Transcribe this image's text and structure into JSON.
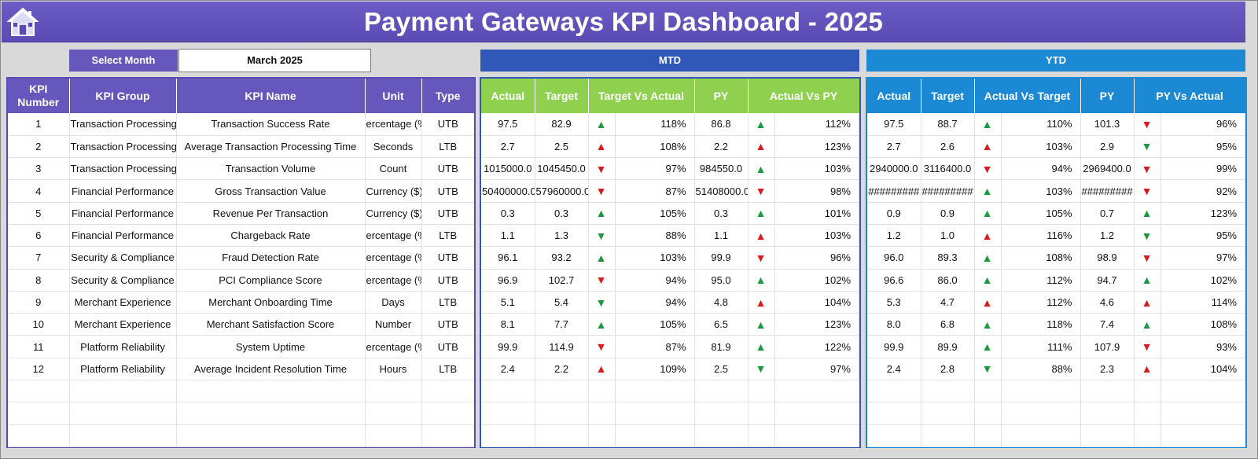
{
  "title": "Payment Gateways KPI Dashboard - 2025",
  "selector": {
    "label": "Select Month",
    "value": "March 2025"
  },
  "sections": {
    "mtd": "MTD",
    "ytd": "YTD"
  },
  "left_headers": [
    "KPI Number",
    "KPI Group",
    "KPI Name",
    "Unit",
    "Type"
  ],
  "mtd_headers": [
    "Actual",
    "Target",
    "Target Vs Actual",
    "PY",
    "Actual Vs PY"
  ],
  "ytd_headers": [
    "Actual",
    "Target",
    "Actual Vs Target",
    "PY",
    "PY Vs Actual"
  ],
  "colors": {
    "banner": "#5a4bb3",
    "mtd": "#2f58b8",
    "ytd": "#1b89d3",
    "mtd_header": "#8fd14f",
    "up": "#1a9a3a",
    "down": "#d81a1a"
  },
  "rows": [
    {
      "num": "1",
      "group": "Transaction Processing",
      "name": "Transaction Success Rate",
      "unit": "ercentage (%",
      "type": "UTB",
      "mtd": {
        "actual": "97.5",
        "target": "82.9",
        "tva_dir": "up",
        "tva": "118%",
        "py": "86.8",
        "avp_dir": "up",
        "avp": "112%"
      },
      "ytd": {
        "actual": "97.5",
        "target": "88.7",
        "avt_dir": "up",
        "avt": "110%",
        "py": "101.3",
        "pva_dir": "down",
        "pva": "96%"
      }
    },
    {
      "num": "2",
      "group": "Transaction Processing",
      "name": "Average Transaction Processing Time",
      "unit": "Seconds",
      "type": "LTB",
      "mtd": {
        "actual": "2.7",
        "target": "2.5",
        "tva_dir": "up-red",
        "tva": "108%",
        "py": "2.2",
        "avp_dir": "up-red",
        "avp": "123%"
      },
      "ytd": {
        "actual": "2.7",
        "target": "2.6",
        "avt_dir": "up-red",
        "avt": "103%",
        "py": "2.9",
        "pva_dir": "down-green",
        "pva": "95%"
      }
    },
    {
      "num": "3",
      "group": "Transaction Processing",
      "name": "Transaction Volume",
      "unit": "Count",
      "type": "UTB",
      "mtd": {
        "actual": "1015000.0",
        "target": "1045450.0",
        "tva_dir": "down",
        "tva": "97%",
        "py": "984550.0",
        "avp_dir": "up",
        "avp": "103%"
      },
      "ytd": {
        "actual": "2940000.0",
        "target": "3116400.0",
        "avt_dir": "down",
        "avt": "94%",
        "py": "2969400.0",
        "pva_dir": "down",
        "pva": "99%"
      }
    },
    {
      "num": "4",
      "group": "Financial Performance",
      "name": "Gross Transaction Value",
      "unit": "Currency ($)",
      "type": "UTB",
      "mtd": {
        "actual": "50400000.0",
        "target": "57960000.0",
        "tva_dir": "down",
        "tva": "87%",
        "py": "51408000.0",
        "avp_dir": "down",
        "avp": "98%"
      },
      "ytd": {
        "actual": "#########",
        "target": "#########",
        "avt_dir": "up",
        "avt": "103%",
        "py": "#########",
        "pva_dir": "down",
        "pva": "92%"
      }
    },
    {
      "num": "5",
      "group": "Financial Performance",
      "name": "Revenue Per Transaction",
      "unit": "Currency ($)",
      "type": "UTB",
      "mtd": {
        "actual": "0.3",
        "target": "0.3",
        "tva_dir": "up",
        "tva": "105%",
        "py": "0.3",
        "avp_dir": "up",
        "avp": "101%"
      },
      "ytd": {
        "actual": "0.9",
        "target": "0.9",
        "avt_dir": "up",
        "avt": "105%",
        "py": "0.7",
        "pva_dir": "up",
        "pva": "123%"
      }
    },
    {
      "num": "6",
      "group": "Financial Performance",
      "name": "Chargeback Rate",
      "unit": "ercentage (%",
      "type": "LTB",
      "mtd": {
        "actual": "1.1",
        "target": "1.3",
        "tva_dir": "down-green",
        "tva": "88%",
        "py": "1.1",
        "avp_dir": "up-red",
        "avp": "103%"
      },
      "ytd": {
        "actual": "1.2",
        "target": "1.0",
        "avt_dir": "up-red",
        "avt": "116%",
        "py": "1.2",
        "pva_dir": "down-green",
        "pva": "95%"
      }
    },
    {
      "num": "7",
      "group": "Security & Compliance",
      "name": "Fraud Detection Rate",
      "unit": "ercentage (%",
      "type": "UTB",
      "mtd": {
        "actual": "96.1",
        "target": "93.2",
        "tva_dir": "up",
        "tva": "103%",
        "py": "99.9",
        "avp_dir": "down",
        "avp": "96%"
      },
      "ytd": {
        "actual": "96.0",
        "target": "89.3",
        "avt_dir": "up",
        "avt": "108%",
        "py": "98.9",
        "pva_dir": "down",
        "pva": "97%"
      }
    },
    {
      "num": "8",
      "group": "Security & Compliance",
      "name": "PCI Compliance Score",
      "unit": "ercentage (%",
      "type": "UTB",
      "mtd": {
        "actual": "96.9",
        "target": "102.7",
        "tva_dir": "down",
        "tva": "94%",
        "py": "95.0",
        "avp_dir": "up",
        "avp": "102%"
      },
      "ytd": {
        "actual": "96.6",
        "target": "86.0",
        "avt_dir": "up",
        "avt": "112%",
        "py": "94.7",
        "pva_dir": "up",
        "pva": "102%"
      }
    },
    {
      "num": "9",
      "group": "Merchant Experience",
      "name": "Merchant Onboarding Time",
      "unit": "Days",
      "type": "LTB",
      "mtd": {
        "actual": "5.1",
        "target": "5.4",
        "tva_dir": "down-green",
        "tva": "94%",
        "py": "4.8",
        "avp_dir": "up-red",
        "avp": "104%"
      },
      "ytd": {
        "actual": "5.3",
        "target": "4.7",
        "avt_dir": "up-red",
        "avt": "112%",
        "py": "4.6",
        "pva_dir": "up-red",
        "pva": "114%"
      }
    },
    {
      "num": "10",
      "group": "Merchant Experience",
      "name": "Merchant Satisfaction Score",
      "unit": "Number",
      "type": "UTB",
      "mtd": {
        "actual": "8.1",
        "target": "7.7",
        "tva_dir": "up",
        "tva": "105%",
        "py": "6.5",
        "avp_dir": "up",
        "avp": "123%"
      },
      "ytd": {
        "actual": "8.0",
        "target": "6.8",
        "avt_dir": "up",
        "avt": "118%",
        "py": "7.4",
        "pva_dir": "up",
        "pva": "108%"
      }
    },
    {
      "num": "11",
      "group": "Platform Reliability",
      "name": "System Uptime",
      "unit": "ercentage (%",
      "type": "UTB",
      "mtd": {
        "actual": "99.9",
        "target": "114.9",
        "tva_dir": "down",
        "tva": "87%",
        "py": "81.9",
        "avp_dir": "up",
        "avp": "122%"
      },
      "ytd": {
        "actual": "99.9",
        "target": "89.9",
        "avt_dir": "up",
        "avt": "111%",
        "py": "107.9",
        "pva_dir": "down",
        "pva": "93%"
      }
    },
    {
      "num": "12",
      "group": "Platform Reliability",
      "name": "Average Incident Resolution Time",
      "unit": "Hours",
      "type": "LTB",
      "mtd": {
        "actual": "2.4",
        "target": "2.2",
        "tva_dir": "up-red",
        "tva": "109%",
        "py": "2.5",
        "avp_dir": "down-green",
        "avp": "97%"
      },
      "ytd": {
        "actual": "2.4",
        "target": "2.8",
        "avt_dir": "down-green",
        "avt": "88%",
        "py": "2.3",
        "pva_dir": "up-red",
        "pva": "104%"
      }
    }
  ],
  "empty_rows": 3
}
